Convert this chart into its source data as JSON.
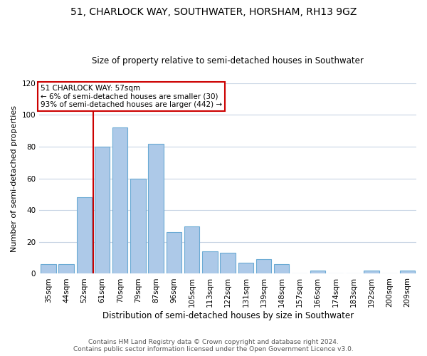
{
  "title": "51, CHARLOCK WAY, SOUTHWATER, HORSHAM, RH13 9GZ",
  "subtitle": "Size of property relative to semi-detached houses in Southwater",
  "xlabel": "Distribution of semi-detached houses by size in Southwater",
  "ylabel": "Number of semi-detached properties",
  "footer_line1": "Contains HM Land Registry data © Crown copyright and database right 2024.",
  "footer_line2": "Contains public sector information licensed under the Open Government Licence v3.0.",
  "bar_labels": [
    "35sqm",
    "44sqm",
    "52sqm",
    "61sqm",
    "70sqm",
    "79sqm",
    "87sqm",
    "96sqm",
    "105sqm",
    "113sqm",
    "122sqm",
    "131sqm",
    "139sqm",
    "148sqm",
    "157sqm",
    "166sqm",
    "174sqm",
    "183sqm",
    "192sqm",
    "200sqm",
    "209sqm"
  ],
  "bar_values": [
    6,
    6,
    48,
    80,
    92,
    60,
    82,
    26,
    30,
    14,
    13,
    7,
    9,
    6,
    0,
    2,
    0,
    0,
    2,
    0,
    2
  ],
  "bar_color": "#adc9e8",
  "bar_edge_color": "#6aaad4",
  "vline_color": "#cc0000",
  "annotation_title": "51 CHARLOCK WAY: 57sqm",
  "annotation_line1": "← 6% of semi-detached houses are smaller (30)",
  "annotation_line2": "93% of semi-detached houses are larger (442) →",
  "annotation_box_color": "#ffffff",
  "annotation_box_edge": "#cc0000",
  "ylim": [
    0,
    120
  ],
  "yticks": [
    0,
    20,
    40,
    60,
    80,
    100,
    120
  ],
  "background_color": "#ffffff",
  "grid_color": "#c8d4e4",
  "title_fontsize": 10,
  "subtitle_fontsize": 8.5,
  "ylabel_fontsize": 8,
  "xlabel_fontsize": 8.5,
  "tick_fontsize": 7.5,
  "footer_fontsize": 6.5
}
